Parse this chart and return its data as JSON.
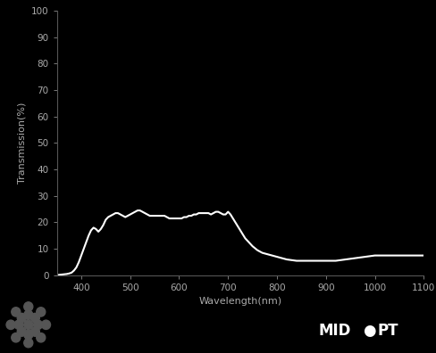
{
  "title": "",
  "xlabel": "Wavelength(nm)",
  "ylabel": "Transmission(%)",
  "background_color": "#000000",
  "line_color": "#ffffff",
  "tick_color": "#aaaaaa",
  "label_color": "#aaaaaa",
  "spine_color": "#555555",
  "xlim": [
    350,
    1100
  ],
  "ylim": [
    0,
    100
  ],
  "xticks": [
    400,
    500,
    600,
    700,
    800,
    900,
    1000,
    1100
  ],
  "yticks": [
    0,
    10,
    20,
    30,
    40,
    50,
    60,
    70,
    80,
    90,
    100
  ],
  "wavelengths": [
    350,
    355,
    360,
    365,
    370,
    375,
    380,
    385,
    390,
    395,
    400,
    405,
    410,
    415,
    420,
    425,
    430,
    435,
    440,
    445,
    450,
    455,
    460,
    465,
    470,
    475,
    480,
    485,
    490,
    495,
    500,
    505,
    510,
    515,
    520,
    525,
    530,
    535,
    540,
    545,
    550,
    555,
    560,
    565,
    570,
    575,
    580,
    585,
    590,
    595,
    600,
    605,
    610,
    615,
    620,
    625,
    630,
    635,
    640,
    645,
    650,
    655,
    660,
    665,
    670,
    675,
    680,
    685,
    690,
    695,
    700,
    705,
    710,
    715,
    720,
    725,
    730,
    735,
    740,
    745,
    750,
    760,
    770,
    780,
    790,
    800,
    820,
    840,
    860,
    880,
    900,
    920,
    940,
    960,
    980,
    1000,
    1020,
    1040,
    1060,
    1080,
    1100
  ],
  "transmission": [
    0.1,
    0.2,
    0.3,
    0.4,
    0.5,
    0.7,
    1.0,
    1.8,
    3.0,
    5.0,
    7.5,
    10.0,
    12.5,
    15.0,
    17.0,
    18.0,
    17.5,
    16.5,
    17.5,
    19.0,
    21.0,
    22.0,
    22.5,
    23.0,
    23.5,
    23.5,
    23.0,
    22.5,
    22.0,
    22.5,
    23.0,
    23.5,
    24.0,
    24.5,
    24.5,
    24.0,
    23.5,
    23.0,
    22.5,
    22.5,
    22.5,
    22.5,
    22.5,
    22.5,
    22.5,
    22.0,
    21.5,
    21.5,
    21.5,
    21.5,
    21.5,
    21.5,
    22.0,
    22.0,
    22.5,
    22.5,
    23.0,
    23.0,
    23.5,
    23.5,
    23.5,
    23.5,
    23.5,
    23.0,
    23.5,
    24.0,
    24.0,
    23.5,
    23.0,
    23.0,
    24.0,
    23.0,
    21.5,
    20.0,
    18.5,
    17.0,
    15.5,
    14.0,
    13.0,
    12.0,
    11.0,
    9.5,
    8.5,
    8.0,
    7.5,
    7.0,
    6.0,
    5.5,
    5.5,
    5.5,
    5.5,
    5.5,
    6.0,
    6.5,
    7.0,
    7.5,
    7.5,
    7.5,
    7.5,
    7.5,
    7.5
  ],
  "line_width": 1.5,
  "figsize": [
    4.89,
    3.96
  ],
  "dpi": 100
}
